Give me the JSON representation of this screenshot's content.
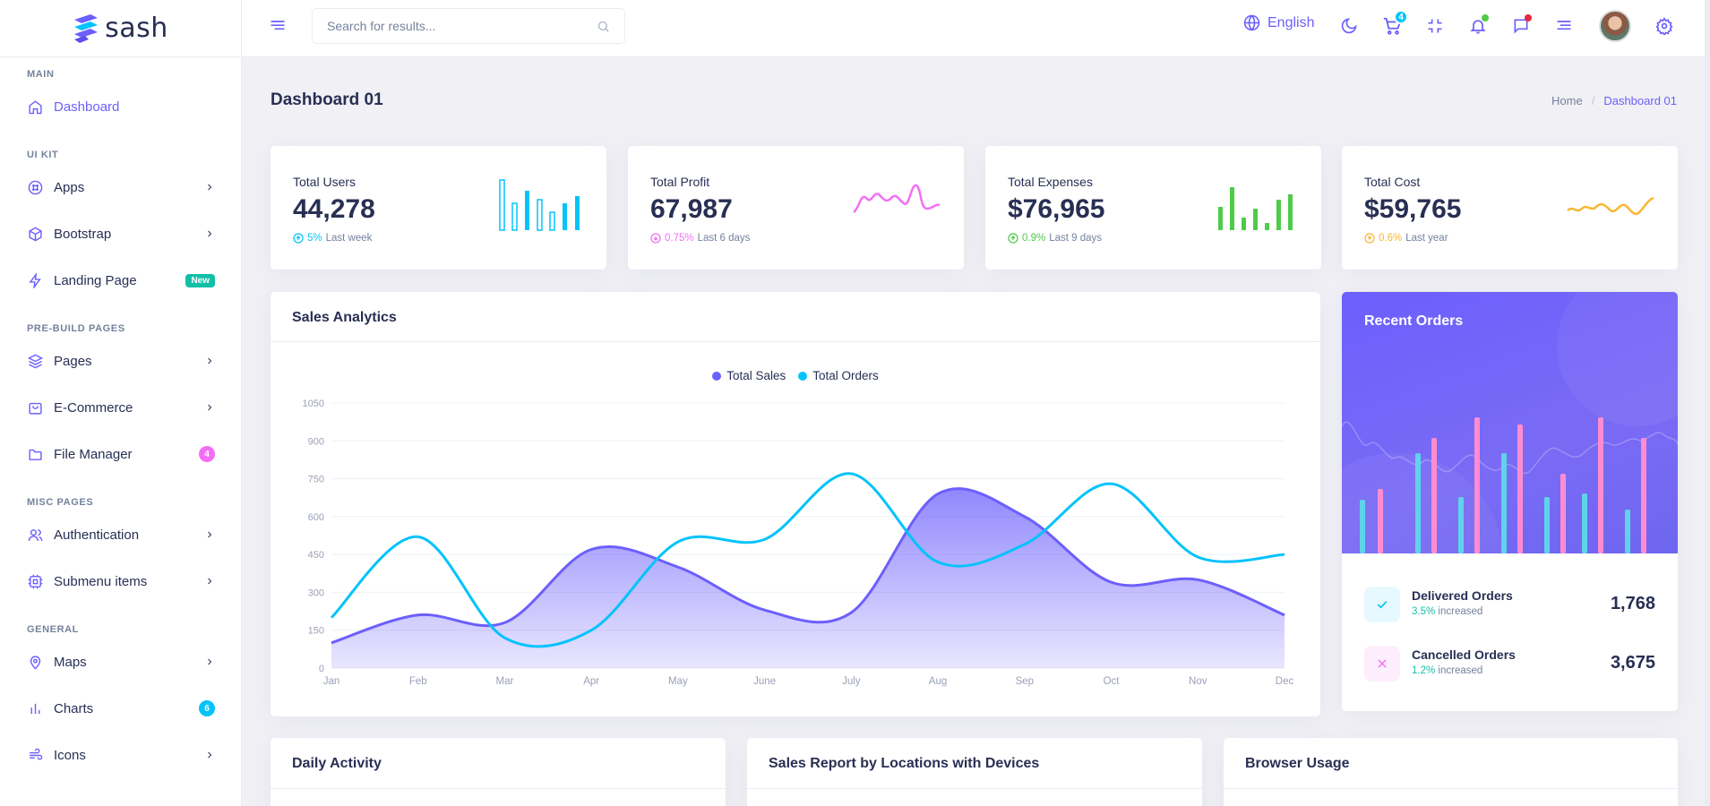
{
  "brand": {
    "name": "sash"
  },
  "sidebar": {
    "sections": [
      {
        "label": "MAIN"
      },
      {
        "label": "UI KIT"
      },
      {
        "label": "PRE-BUILD PAGES"
      },
      {
        "label": "MISC PAGES"
      },
      {
        "label": "GENERAL"
      }
    ],
    "items": [
      {
        "label": "Dashboard",
        "icon": "home-icon"
      },
      {
        "label": "Apps",
        "icon": "slack-icon"
      },
      {
        "label": "Bootstrap",
        "icon": "package-icon"
      },
      {
        "label": "Landing Page",
        "icon": "zap-icon",
        "badge": "New"
      },
      {
        "label": "Pages",
        "icon": "layers-icon"
      },
      {
        "label": "E-Commerce",
        "icon": "shopping-bag-icon"
      },
      {
        "label": "File Manager",
        "icon": "folder-icon",
        "badge": "4"
      },
      {
        "label": "Authentication",
        "icon": "users-icon"
      },
      {
        "label": "Submenu items",
        "icon": "cpu-icon"
      },
      {
        "label": "Maps",
        "icon": "map-pin-icon"
      },
      {
        "label": "Charts",
        "icon": "bar-chart-icon",
        "badge": "6"
      },
      {
        "label": "Icons",
        "icon": "wind-icon"
      }
    ]
  },
  "header": {
    "search_placeholder": "Search for results...",
    "language": "English",
    "cart_count": "4"
  },
  "page": {
    "title": "Dashboard 01",
    "breadcrumb": [
      "Home",
      "Dashboard 01"
    ]
  },
  "stats": [
    {
      "title": "Total Users",
      "value": "44,278",
      "pct": "5%",
      "period": "Last week",
      "color": "#05c3fb"
    },
    {
      "title": "Total Profit",
      "value": "67,987",
      "pct": "0.75%",
      "period": "Last 6 days",
      "color": "#f46ef4"
    },
    {
      "title": "Total Expenses",
      "value": "$76,965",
      "pct": "0.9%",
      "period": "Last 9 days",
      "color": "#4ecc48"
    },
    {
      "title": "Total Cost",
      "value": "$59,765",
      "pct": "0.6%",
      "period": "Last year",
      "color": "#f7b731"
    }
  ],
  "sales": {
    "title": "Sales Analytics",
    "legend": [
      "Total Sales",
      "Total Orders"
    ]
  },
  "chart_data": {
    "type": "area",
    "categories": [
      "Jan",
      "Feb",
      "Mar",
      "Apr",
      "May",
      "June",
      "July",
      "Aug",
      "Sep",
      "Oct",
      "Nov",
      "Dec"
    ],
    "series": [
      {
        "name": "Total Sales",
        "type": "area",
        "color": "#6c5ffc",
        "values": [
          100,
          210,
          180,
          470,
          400,
          230,
          220,
          690,
          600,
          340,
          350,
          210
        ]
      },
      {
        "name": "Total Orders",
        "type": "line",
        "color": "#05c3fb",
        "values": [
          200,
          520,
          120,
          150,
          500,
          510,
          770,
          420,
          490,
          730,
          440,
          450
        ]
      }
    ],
    "yticks": [
      0,
      150,
      300,
      450,
      600,
      750,
      900,
      1050
    ],
    "ylim": [
      0,
      1050
    ],
    "legend_position": "top-center"
  },
  "recent_orders": {
    "title": "Recent Orders",
    "rows": [
      {
        "name": "Delivered Orders",
        "pct": "3.5%",
        "suffix": "increased",
        "value": "1,768"
      },
      {
        "name": "Cancelled Orders",
        "pct": "1.2%",
        "suffix": "increased",
        "value": "3,675"
      }
    ]
  },
  "bottom_cards": [
    {
      "title": "Daily Activity"
    },
    {
      "title": "Sales Report by Locations with Devices"
    },
    {
      "title": "Browser Usage"
    }
  ]
}
